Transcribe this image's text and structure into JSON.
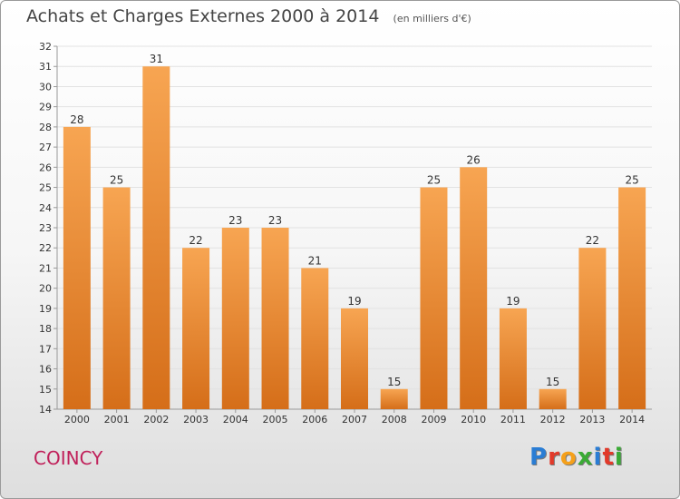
{
  "header": {
    "title": "Achats et Charges Externes 2000 à 2014",
    "subtitle": "(en milliers d'€)"
  },
  "footer": {
    "commune": "COINCY",
    "logo_letters": [
      "P",
      "r",
      "o",
      "x",
      "i",
      "t",
      "i"
    ],
    "logo_colors": [
      "#2a7dd4",
      "#e23a2a",
      "#f5a01a",
      "#3aaa35",
      "#2a7dd4",
      "#e23a2a",
      "#3aaa35"
    ]
  },
  "chart_data": {
    "type": "bar",
    "categories": [
      "2000",
      "2001",
      "2002",
      "2003",
      "2004",
      "2005",
      "2006",
      "2007",
      "2008",
      "2009",
      "2010",
      "2011",
      "2012",
      "2013",
      "2014"
    ],
    "values": [
      28,
      25,
      31,
      22,
      23,
      23,
      21,
      19,
      15,
      25,
      26,
      19,
      15,
      22,
      25
    ],
    "title": "Achats et Charges Externes 2000 à 2014",
    "subtitle": "(en milliers d'€)",
    "ylim": [
      14,
      32
    ],
    "yticks": [
      14,
      15,
      16,
      17,
      18,
      19,
      20,
      21,
      22,
      23,
      24,
      25,
      26,
      27,
      28,
      29,
      30,
      31,
      32
    ],
    "grid": true,
    "bar_color_top": "#f7a552",
    "bar_color_bottom": "#d56e19"
  }
}
